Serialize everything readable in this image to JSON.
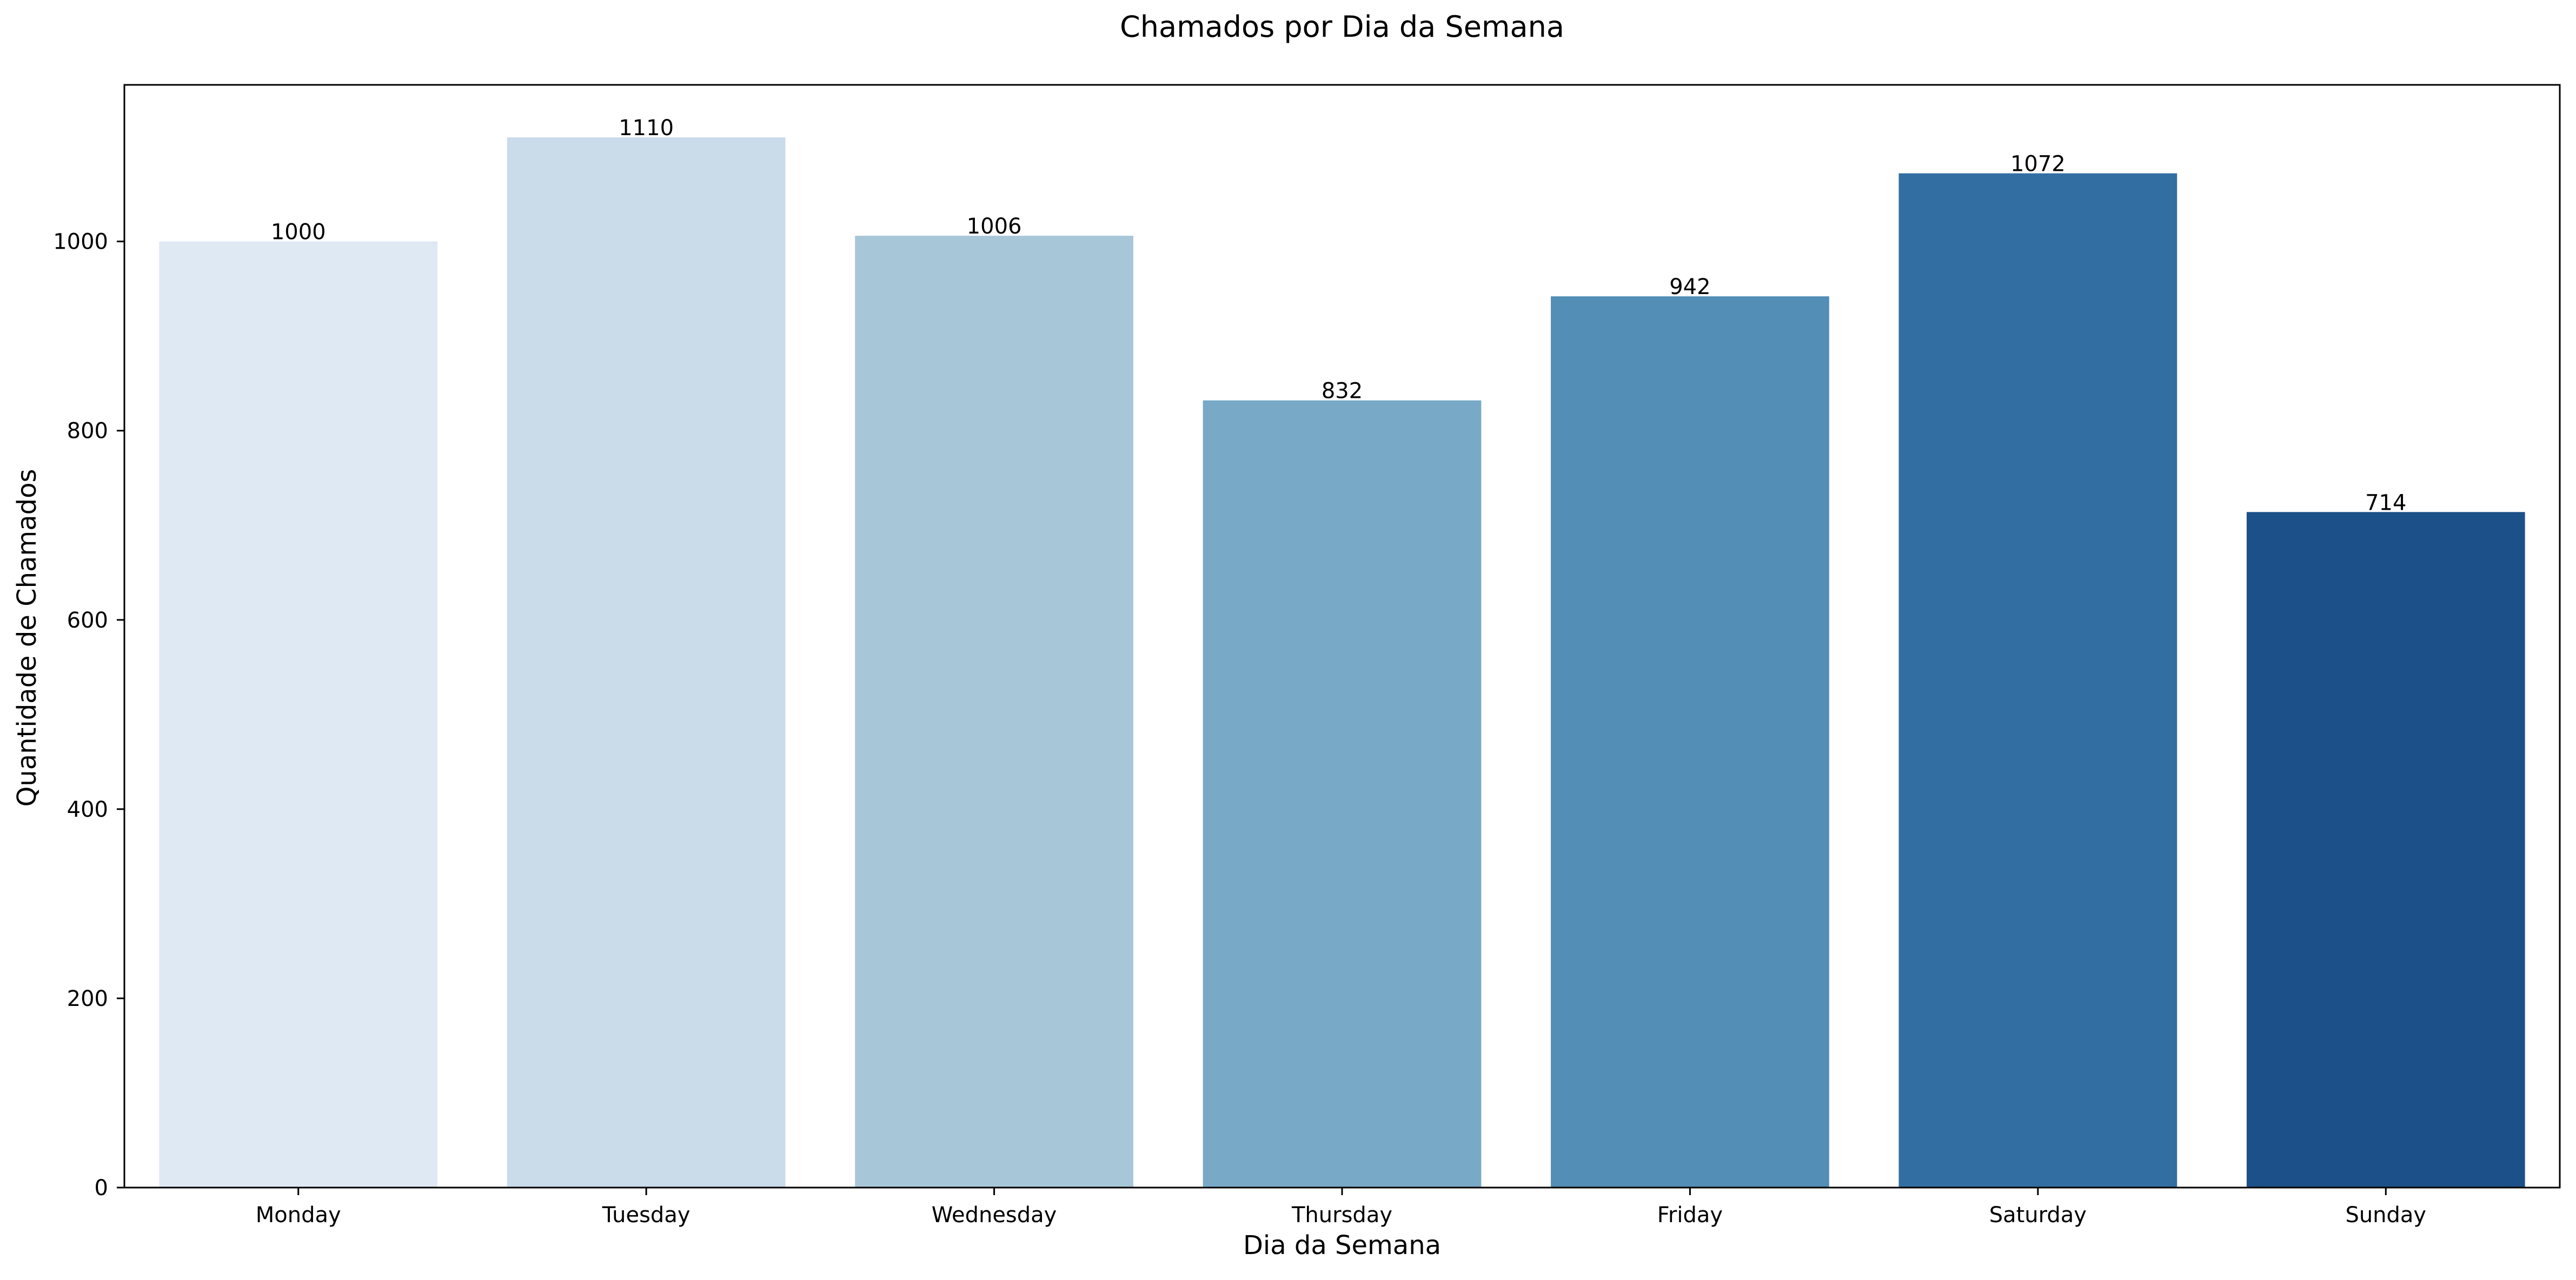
{
  "chart_data": {
    "type": "bar",
    "title": "Chamados por Dia da Semana",
    "xlabel": "Dia da Semana",
    "ylabel": "Quantidade de Chamados",
    "categories": [
      "Monday",
      "Tuesday",
      "Wednesday",
      "Thursday",
      "Friday",
      "Saturday",
      "Sunday"
    ],
    "values": [
      1000,
      1110,
      1006,
      832,
      942,
      1072,
      714
    ],
    "data_labels": [
      "1000",
      "1110",
      "1006",
      "832",
      "942",
      "1072",
      "714"
    ],
    "ylim": [
      0,
      1165.5
    ],
    "yticks": [
      0,
      200,
      400,
      600,
      800,
      1000
    ],
    "ytick_labels": [
      "0",
      "200",
      "400",
      "600",
      "800",
      "1000"
    ],
    "grid": false,
    "legend": "none",
    "colors": [
      "#dfe9f4",
      "#cadbea",
      "#a7c7d8",
      "#78a9c7",
      "#528eb6",
      "#326ea2",
      "#1c5088"
    ]
  }
}
